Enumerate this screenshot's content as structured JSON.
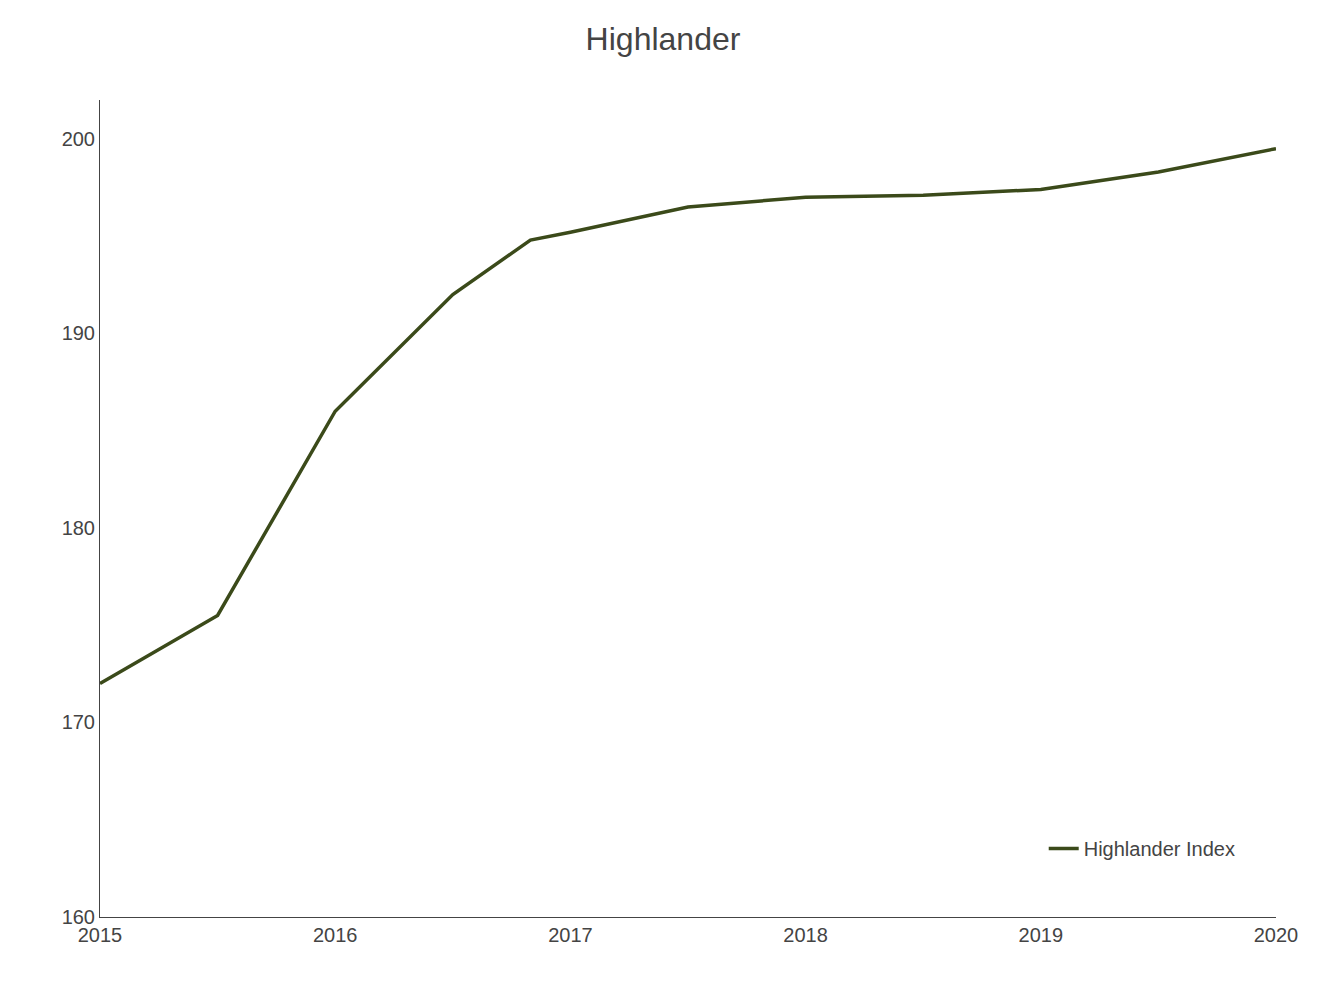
{
  "chart_data": {
    "type": "line",
    "title": "Highlander",
    "x": [
      2015.0,
      2015.5,
      2016.0,
      2016.5,
      2016.83,
      2017.0,
      2017.5,
      2018.0,
      2018.5,
      2019.0,
      2019.5,
      2020.0
    ],
    "series": [
      {
        "name": "Highlander Index",
        "color": "#3b4a1a",
        "values": [
          172.0,
          175.5,
          186.0,
          192.0,
          194.8,
          195.2,
          196.5,
          197.0,
          197.1,
          197.4,
          198.3,
          199.5
        ]
      }
    ],
    "xlim": [
      2015.0,
      2020.0
    ],
    "ylim": [
      160,
      202
    ],
    "xticks": [
      2015,
      2016,
      2017,
      2018,
      2019,
      2020
    ],
    "yticks": [
      160,
      170,
      180,
      190,
      200
    ],
    "grid": false,
    "legend": "lower right"
  }
}
